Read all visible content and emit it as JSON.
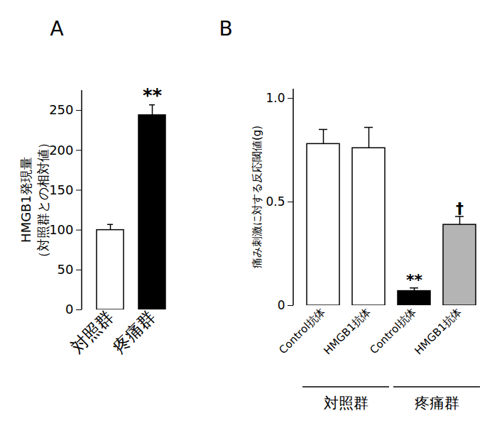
{
  "chart_data": [
    {
      "type": "bar",
      "title": "A",
      "y_label": [
        "HMGB1発現量",
        "（対照群との相対値）"
      ],
      "categories": [
        "対照群",
        "疼痛群"
      ],
      "values": [
        100,
        244
      ],
      "errors": [
        7,
        13
      ],
      "colors": [
        "#ffffff",
        "#000000"
      ],
      "significance": [
        null,
        "**"
      ],
      "ylim": [
        0,
        275
      ],
      "yticks": [
        0,
        50,
        100,
        150,
        200,
        250
      ]
    },
    {
      "type": "bar",
      "title": "B",
      "y_label": [
        "痛み刺激に対する反応閾値(g)"
      ],
      "categories": [
        "Control抗体",
        "HMGB1抗体",
        "Control抗体",
        "HMGB1抗体"
      ],
      "group_labels": [
        "対照群",
        "対照群",
        "疼痛群",
        "疼痛群"
      ],
      "values": [
        0.78,
        0.76,
        0.07,
        0.39
      ],
      "errors": [
        0.07,
        0.1,
        0.015,
        0.04
      ],
      "colors": [
        "#ffffff",
        "#ffffff",
        "#000000",
        "#b4b4b4"
      ],
      "significance": [
        null,
        null,
        "**",
        "†"
      ],
      "ylim": [
        0,
        1.045
      ],
      "yticks": [
        0,
        0.5,
        {
          "value": 1,
          "label": "1.0"
        }
      ]
    }
  ]
}
